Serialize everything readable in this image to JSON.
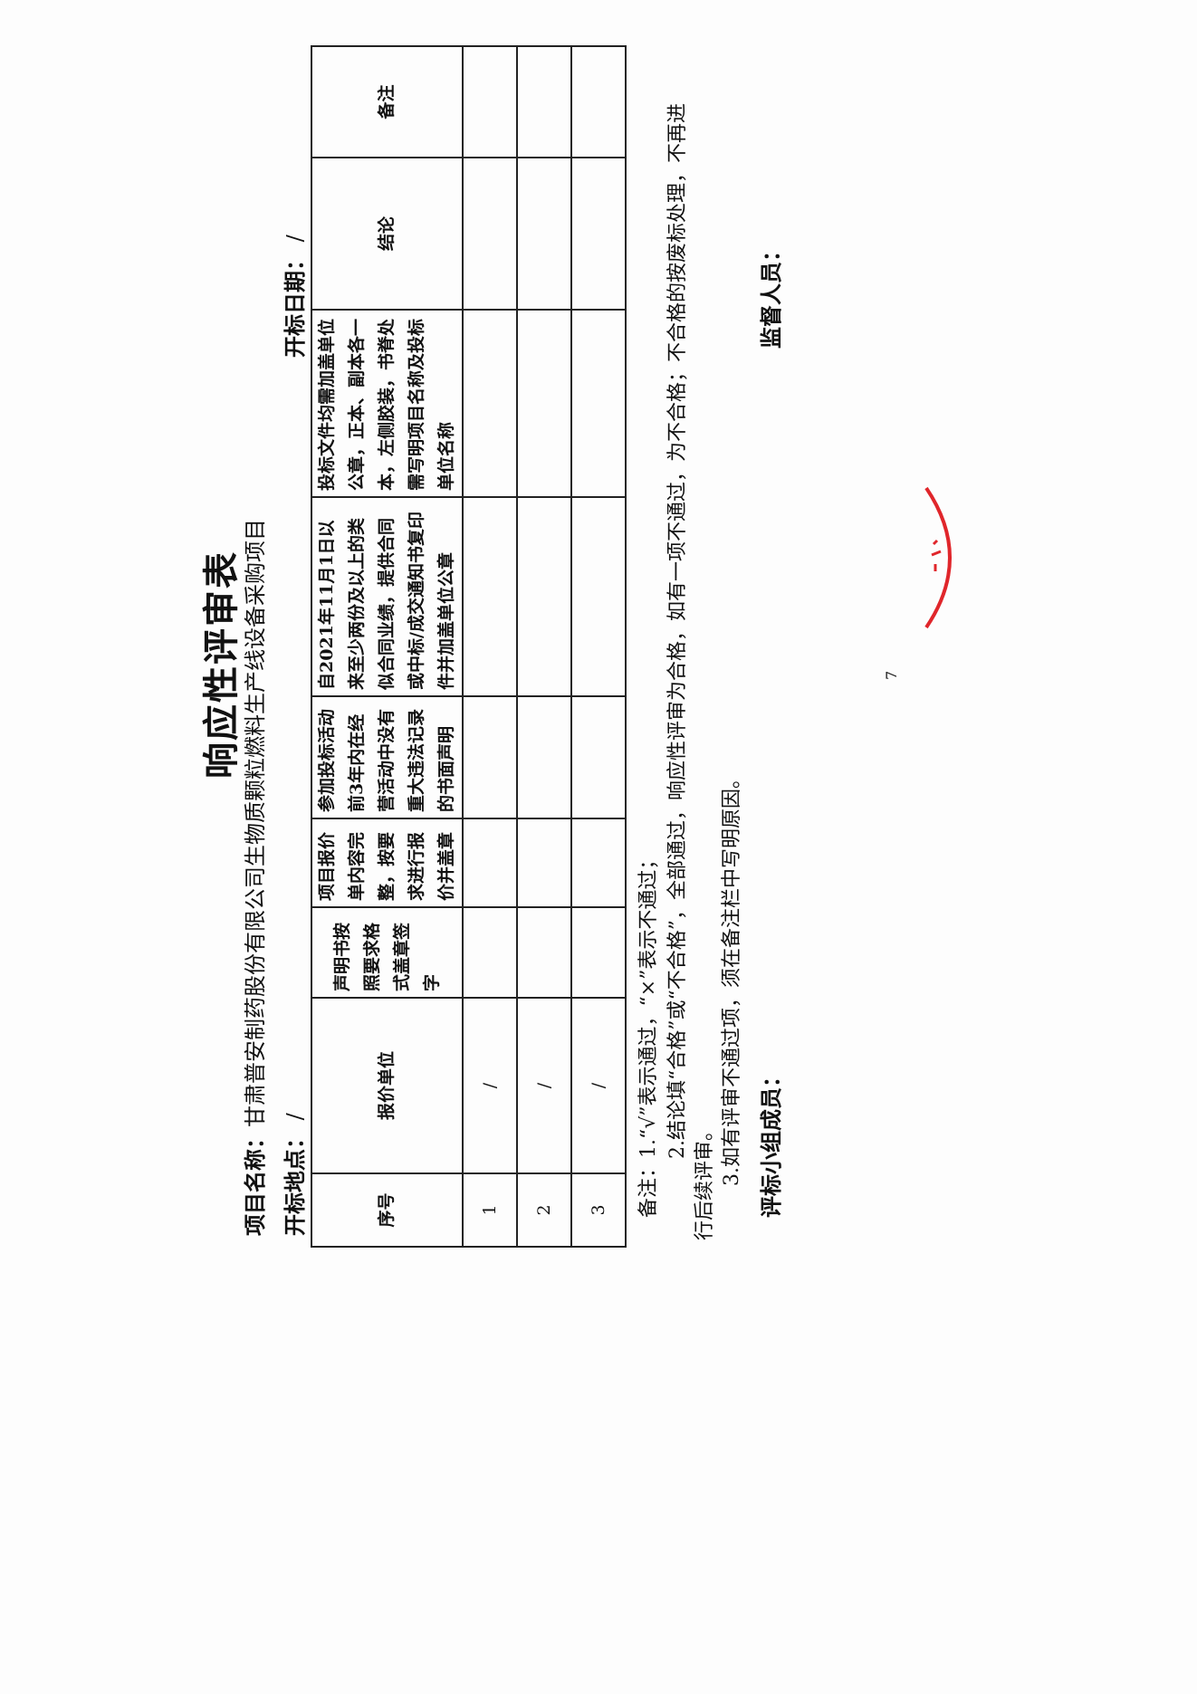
{
  "title": "响应性评审表",
  "project_name_label": "项目名称：",
  "project_name": "甘肃普安制药股份有限公司生物质颗粒燃料生产线设备采购项目",
  "bid_location_label": "开标地点：",
  "bid_location": "/",
  "bid_date_label": "开标日期：",
  "bid_date": "/",
  "table": {
    "headers": [
      "序号",
      "报价单位",
      "声明书按照要求格式盖章签字",
      "项目报价单内容完整，按要求进行报价并盖章",
      "参加投标活动前3年内在经营活动中没有重大违法记录的书面声明",
      "自2021年11月1日以来至少两份及以上的类似合同业绩，提供合同或中标/成交通知书复印件并加盖单位公章",
      "投标文件均需加盖单位公章，正本、副本各一本，左侧胶装，书脊处需写明项目名称及投标单位名称",
      "结论",
      "备注"
    ],
    "rows": [
      [
        "1",
        "/",
        "",
        "",
        "",
        "",
        "",
        "",
        ""
      ],
      [
        "2",
        "/",
        "",
        "",
        "",
        "",
        "",
        "",
        ""
      ],
      [
        "3",
        "/",
        "",
        "",
        "",
        "",
        "",
        "",
        ""
      ]
    ]
  },
  "notes": {
    "line1": "备注：1.“√”表示通过，“×”表示不通过；",
    "line2a": "2.结论填“合格”或“不合格”，全部通过，响应性评审为合格，如有一项不通过，为不合格；不合格的按废标处理，不再进",
    "line2b": "行后续评审。",
    "line3": "3.如有评审不通过项，须在备注栏中写明原因。"
  },
  "committee_label": "评标小组成员：",
  "supervisor_label": "监督人员：",
  "page_number": "7",
  "stamp_color": "#e0262b"
}
